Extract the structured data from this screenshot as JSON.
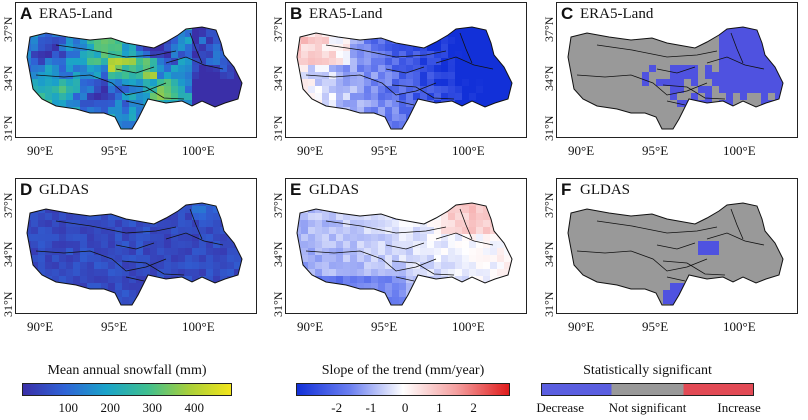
{
  "panels": [
    {
      "letter": "A",
      "dataset": "ERA5-Land",
      "fill": "snowfall"
    },
    {
      "letter": "B",
      "dataset": "ERA5-Land",
      "fill": "slope_era"
    },
    {
      "letter": "C",
      "dataset": "ERA5-Land",
      "fill": "sig_era"
    },
    {
      "letter": "D",
      "dataset": "GLDAS",
      "fill": "snowfall_gldas"
    },
    {
      "letter": "E",
      "dataset": "GLDAS",
      "fill": "slope_gldas"
    },
    {
      "letter": "F",
      "dataset": "GLDAS",
      "fill": "sig_gldas"
    }
  ],
  "axes": {
    "xticks": [
      "90°E",
      "95°E",
      "100°E"
    ],
    "yticks": [
      "37°N",
      "34°N",
      "31°N"
    ]
  },
  "colorbars": [
    {
      "title": "Mean annual snowfall (mm)",
      "ticks": [
        "100",
        "200",
        "300",
        "400"
      ],
      "colors": [
        "#3a2fa8",
        "#2f63d6",
        "#1aa3c9",
        "#3fbf8f",
        "#a9cf3a",
        "#f2e51b"
      ]
    },
    {
      "title": "Slope of the trend (mm/year)",
      "ticks": [
        "-2",
        "-1",
        "0",
        "1",
        "2"
      ],
      "colors": [
        "#1230d8",
        "#6b7ff0",
        "#ffffff",
        "#f4a0a0",
        "#e01c1c"
      ]
    },
    {
      "title": "Statistically significant",
      "ticks": [
        "Decrease",
        "Not significant",
        "Increase"
      ],
      "colors": [
        "#5a5ee0",
        "#999999",
        "#999999",
        "#e24a55"
      ]
    }
  ],
  "colors": {
    "decrease": "#4f52e0",
    "not_significant": "#999999",
    "increase": "#e24a55",
    "border": "#111111"
  }
}
